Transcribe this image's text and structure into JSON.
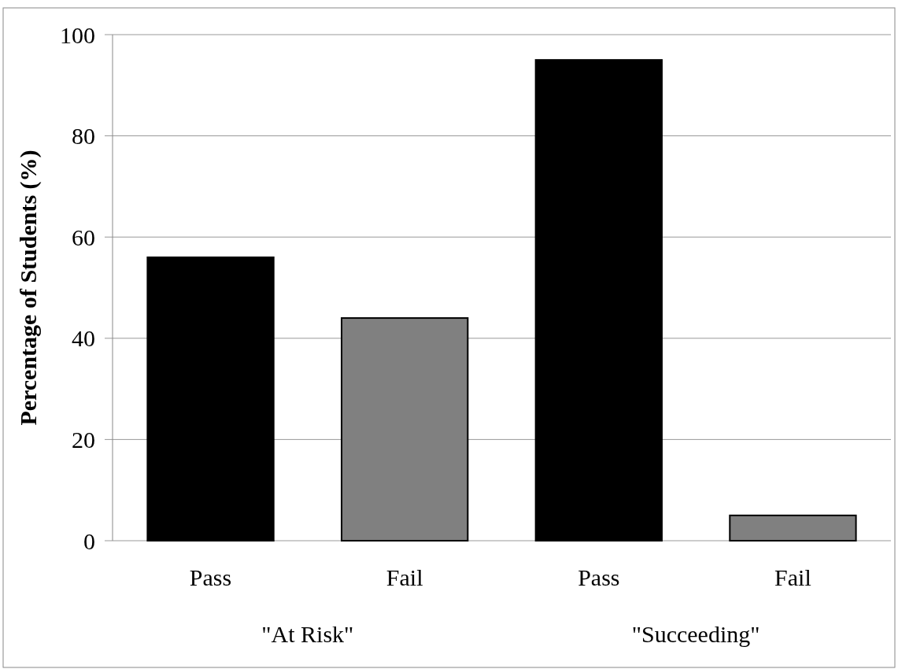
{
  "chart_data": {
    "type": "bar",
    "ylabel": "Percentage of Students (%)",
    "categories": [
      "Pass",
      "Fail",
      "Pass",
      "Fail"
    ],
    "values": [
      56,
      44,
      95,
      5
    ],
    "colors": [
      "#000000",
      "#808080",
      "#000000",
      "#808080"
    ],
    "ylim": [
      0,
      100
    ],
    "yticks": [
      0,
      20,
      40,
      60,
      80,
      100
    ],
    "grid": "y",
    "annotations": [
      "\"At Risk\"",
      "\"Succeeding\""
    ]
  }
}
